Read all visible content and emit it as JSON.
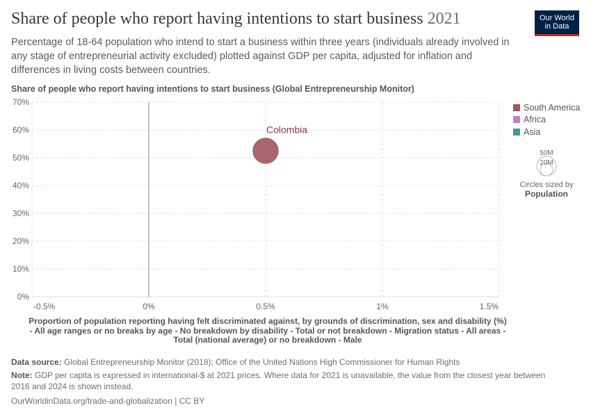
{
  "header": {
    "title": "Share of people who report having intentions to start business",
    "year": "2021",
    "subtitle": "Percentage of 18-64 population who intend to start a business within three years (individuals already involved in any stage of entrepreneurial activity excluded) plotted against GDP per capita, adjusted for inflation and differences in living costs between countries.",
    "logo_line1": "Our World",
    "logo_line2": "in Data"
  },
  "chart_data": {
    "type": "scatter",
    "title": "Share of people who report having intentions to start business",
    "ylabel": "Share of people who report having intentions to start business (Global Entrepreneurship Monitor)",
    "xlabel": "Proportion of population reporting having felt discriminated against, by grounds of discrimination, sex and disability (%) - All age ranges or no breaks by age - No breakdown by disability - Total or not breakdown - Migration status - All areas - Total (national average) or no breakdown - Male",
    "xlim": [
      -0.5,
      1.5
    ],
    "ylim": [
      0,
      70
    ],
    "x_ticks": [
      -0.5,
      0,
      0.5,
      1,
      1.5
    ],
    "x_tick_labels": [
      "-0.5%",
      "0%",
      "0.5%",
      "1%",
      "1.5%"
    ],
    "y_ticks": [
      0,
      10,
      20,
      30,
      40,
      50,
      60,
      70
    ],
    "y_tick_labels": [
      "0%",
      "10%",
      "20%",
      "30%",
      "40%",
      "50%",
      "60%",
      "70%"
    ],
    "grid": true,
    "legend_position": "right",
    "series": [
      {
        "name": "South America",
        "color": "#a2545f"
      },
      {
        "name": "Africa",
        "color": "#c27fc2"
      },
      {
        "name": "Asia",
        "color": "#3d9e98"
      }
    ],
    "points": [
      {
        "label": "Colombia",
        "x": 0.5,
        "y": 52.5,
        "population_millions": 51.5,
        "series": "South America"
      }
    ],
    "size_legend": {
      "values": [
        "50M",
        "20M"
      ],
      "caption": "Circles sized by",
      "variable": "Population"
    }
  },
  "footer": {
    "source_label": "Data source:",
    "source_text": "Global Entrepreneurship Monitor (2018); Office of the United Nations High Commissioner for Human Rights",
    "note_label": "Note:",
    "note_text": "GDP per capita is expressed in international-$ at 2021 prices. Where data for 2021 is unavailable, the value from the closest year between 2016 and 2024 is shown instead.",
    "url": "OurWorldinData.org/trade-and-globalization | CC BY"
  }
}
